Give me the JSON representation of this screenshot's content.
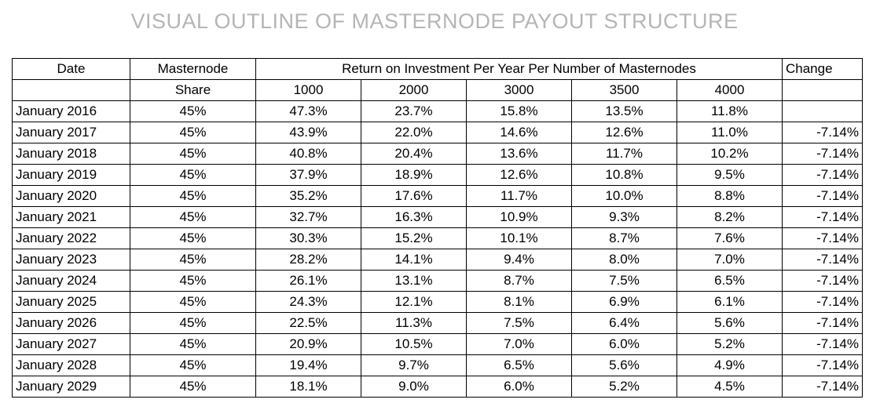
{
  "title": "VISUAL OUTLINE OF MASTERNODE PAYOUT STRUCTURE",
  "header": {
    "date": "Date",
    "masternode": "Masternode",
    "share": "Share",
    "roi": "Return on Investment Per Year Per Number of Masternodes",
    "change": "Change",
    "counts": [
      "1000",
      "2000",
      "3000",
      "3500",
      "4000"
    ]
  },
  "rows": [
    {
      "date": "January 2016",
      "share": "45%",
      "v": [
        "47.3%",
        "23.7%",
        "15.8%",
        "13.5%",
        "11.8%"
      ],
      "change": ""
    },
    {
      "date": "January 2017",
      "share": "45%",
      "v": [
        "43.9%",
        "22.0%",
        "14.6%",
        "12.6%",
        "11.0%"
      ],
      "change": "-7.14%"
    },
    {
      "date": "January 2018",
      "share": "45%",
      "v": [
        "40.8%",
        "20.4%",
        "13.6%",
        "11.7%",
        "10.2%"
      ],
      "change": "-7.14%"
    },
    {
      "date": "January 2019",
      "share": "45%",
      "v": [
        "37.9%",
        "18.9%",
        "12.6%",
        "10.8%",
        "9.5%"
      ],
      "change": "-7.14%"
    },
    {
      "date": "January 2020",
      "share": "45%",
      "v": [
        "35.2%",
        "17.6%",
        "11.7%",
        "10.0%",
        "8.8%"
      ],
      "change": "-7.14%"
    },
    {
      "date": "January 2021",
      "share": "45%",
      "v": [
        "32.7%",
        "16.3%",
        "10.9%",
        "9.3%",
        "8.2%"
      ],
      "change": "-7.14%"
    },
    {
      "date": "January 2022",
      "share": "45%",
      "v": [
        "30.3%",
        "15.2%",
        "10.1%",
        "8.7%",
        "7.6%"
      ],
      "change": "-7.14%"
    },
    {
      "date": "January 2023",
      "share": "45%",
      "v": [
        "28.2%",
        "14.1%",
        "9.4%",
        "8.0%",
        "7.0%"
      ],
      "change": "-7.14%"
    },
    {
      "date": "January 2024",
      "share": "45%",
      "v": [
        "26.1%",
        "13.1%",
        "8.7%",
        "7.5%",
        "6.5%"
      ],
      "change": "-7.14%"
    },
    {
      "date": "January 2025",
      "share": "45%",
      "v": [
        "24.3%",
        "12.1%",
        "8.1%",
        "6.9%",
        "6.1%"
      ],
      "change": "-7.14%"
    },
    {
      "date": "January 2026",
      "share": "45%",
      "v": [
        "22.5%",
        "11.3%",
        "7.5%",
        "6.4%",
        "5.6%"
      ],
      "change": "-7.14%"
    },
    {
      "date": "January 2027",
      "share": "45%",
      "v": [
        "20.9%",
        "10.5%",
        "7.0%",
        "6.0%",
        "5.2%"
      ],
      "change": "-7.14%"
    },
    {
      "date": "January 2028",
      "share": "45%",
      "v": [
        "19.4%",
        "9.7%",
        "6.5%",
        "5.6%",
        "4.9%"
      ],
      "change": "-7.14%"
    },
    {
      "date": "January 2029",
      "share": "45%",
      "v": [
        "18.1%",
        "9.0%",
        "6.0%",
        "5.2%",
        "4.5%"
      ],
      "change": "-7.14%"
    }
  ]
}
